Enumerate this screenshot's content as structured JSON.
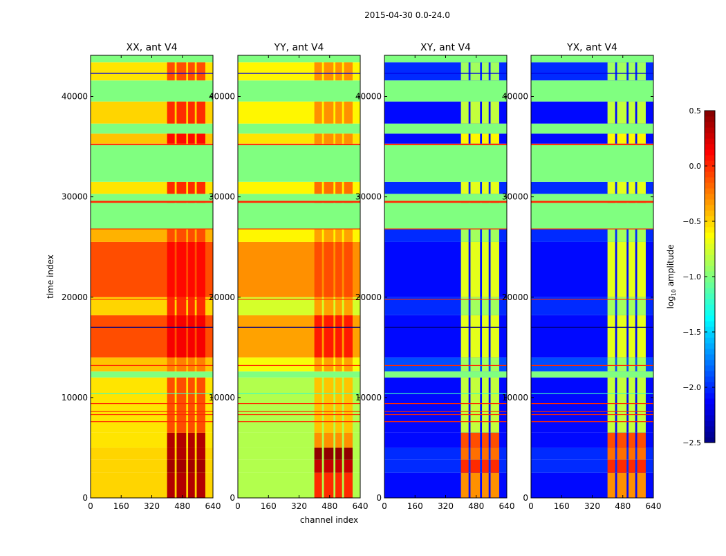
{
  "chart_data": {
    "type": "heatmap",
    "title": "2015-04-30 0.0-24.0",
    "xlabel": "channel index",
    "ylabel": "time index",
    "xlim": [
      0,
      640
    ],
    "ylim": [
      0,
      44100
    ],
    "xticks": [
      0,
      160,
      320,
      480,
      640
    ],
    "yticks": [
      0,
      10000,
      20000,
      30000,
      40000
    ],
    "colormap": "jet",
    "colorbar": {
      "label_main": "log",
      "label_sub": "10",
      "label_rest": " amplitude",
      "range": [
        -2.5,
        0.5
      ],
      "ticks": [
        -2.5,
        -2.0,
        -1.5,
        -1.0,
        -0.5,
        0.0,
        0.5
      ],
      "tick_labels": [
        "−2.5",
        "−2.0",
        "−1.5",
        "−1.0",
        "−0.5",
        "0.0",
        "0.5"
      ]
    },
    "panels": [
      {
        "title": "XX, ant V4"
      },
      {
        "title": "YY, ant V4"
      },
      {
        "title": "XY, ant V4"
      },
      {
        "title": "YX, ant V4"
      }
    ],
    "rfi_channels": [
      [
        400,
        440
      ],
      [
        450,
        500
      ],
      [
        510,
        545
      ],
      [
        555,
        600
      ]
    ],
    "band_fields": [
      "t_start",
      "t_end",
      "XX",
      "YY",
      "XY",
      "YX",
      "rfi_XX",
      "rfi_YY",
      "rfi_XY",
      "rfi_YX"
    ],
    "bands": [
      [
        0,
        2500,
        -0.5,
        -0.85,
        -2.1,
        -2.1,
        0.35,
        0.0,
        -0.3,
        -0.3
      ],
      [
        2500,
        3800,
        -0.5,
        -0.85,
        -2.0,
        -2.0,
        0.4,
        0.3,
        0.0,
        0.0
      ],
      [
        3800,
        5000,
        -0.5,
        -0.85,
        -2.0,
        -2.0,
        0.35,
        0.45,
        -0.2,
        -0.2
      ],
      [
        5000,
        6500,
        -0.55,
        -0.85,
        -2.1,
        -2.1,
        0.35,
        -0.3,
        -0.1,
        -0.1
      ],
      [
        6500,
        12000,
        -0.55,
        -0.85,
        -2.1,
        -2.1,
        -0.1,
        -0.45,
        -0.8,
        -0.8
      ],
      [
        12000,
        12600,
        -1.0,
        -1.0,
        -1.0,
        -1.0,
        -1.0,
        -1.0,
        -1.0,
        -1.0
      ],
      [
        12600,
        14000,
        -0.45,
        -0.65,
        -1.9,
        -1.9,
        -0.25,
        -0.35,
        -0.9,
        -0.9
      ],
      [
        14000,
        18200,
        -0.1,
        -0.35,
        -2.1,
        -2.1,
        0.15,
        0.05,
        -0.7,
        -0.7
      ],
      [
        18200,
        20000,
        -0.5,
        -0.75,
        -2.0,
        -2.0,
        0.0,
        -0.35,
        -0.9,
        -0.9
      ],
      [
        20000,
        25500,
        -0.1,
        -0.3,
        -2.1,
        -2.1,
        0.1,
        -0.1,
        -0.7,
        -0.7
      ],
      [
        25500,
        26800,
        -0.4,
        -0.6,
        -2.0,
        -2.0,
        -0.1,
        -0.35,
        -0.9,
        -0.9
      ],
      [
        26800,
        29400,
        -1.0,
        -1.0,
        -1.0,
        -1.0,
        -1.0,
        -1.0,
        -1.0,
        -1.0
      ],
      [
        29400,
        29600,
        0.0,
        0.0,
        0.0,
        0.0,
        0.0,
        0.0,
        0.0,
        0.0
      ],
      [
        29600,
        30300,
        -1.0,
        -1.0,
        -1.0,
        -1.0,
        -1.0,
        -1.0,
        -1.0,
        -1.0
      ],
      [
        30300,
        31500,
        -0.55,
        -0.6,
        -2.0,
        -2.0,
        0.0,
        -0.2,
        -0.7,
        -0.7
      ],
      [
        31500,
        35150,
        -1.0,
        -1.0,
        -1.0,
        -1.0,
        -1.0,
        -1.0,
        -1.0,
        -1.0
      ],
      [
        35150,
        35300,
        0.0,
        0.0,
        0.0,
        0.0,
        0.0,
        0.0,
        0.0,
        0.0
      ],
      [
        35300,
        36300,
        -0.45,
        -0.55,
        -2.1,
        -2.1,
        0.1,
        -0.3,
        -0.6,
        -0.6
      ],
      [
        36300,
        37300,
        -1.0,
        -1.0,
        -1.0,
        -1.0,
        -1.0,
        -1.0,
        -1.0,
        -1.0
      ],
      [
        37300,
        39500,
        -0.5,
        -0.6,
        -2.1,
        -2.1,
        0.0,
        -0.3,
        -0.8,
        -0.8
      ],
      [
        39500,
        41600,
        -1.0,
        -1.0,
        -1.0,
        -1.0,
        -1.0,
        -1.0,
        -1.0,
        -1.0
      ],
      [
        41600,
        43400,
        -0.55,
        -0.6,
        -2.0,
        -2.0,
        -0.1,
        -0.3,
        -0.9,
        -0.9
      ],
      [
        43400,
        44100,
        -1.0,
        -1.0,
        -1.0,
        -1.0,
        -1.0,
        -1.0,
        -1.0,
        -1.0
      ]
    ],
    "flag_lines": [
      {
        "t": 7600,
        "value": 0.0
      },
      {
        "t": 8300,
        "value": 0.0
      },
      {
        "t": 8600,
        "value": 0.0
      },
      {
        "t": 9400,
        "value": 0.0
      },
      {
        "t": 10400,
        "value": -1.2
      },
      {
        "t": 13200,
        "value": 0.0
      },
      {
        "t": 17000,
        "value": -2.5
      },
      {
        "t": 19800,
        "value": 0.0
      },
      {
        "t": 26800,
        "value": 0.0
      },
      {
        "t": 42300,
        "value": -2.2
      }
    ]
  }
}
